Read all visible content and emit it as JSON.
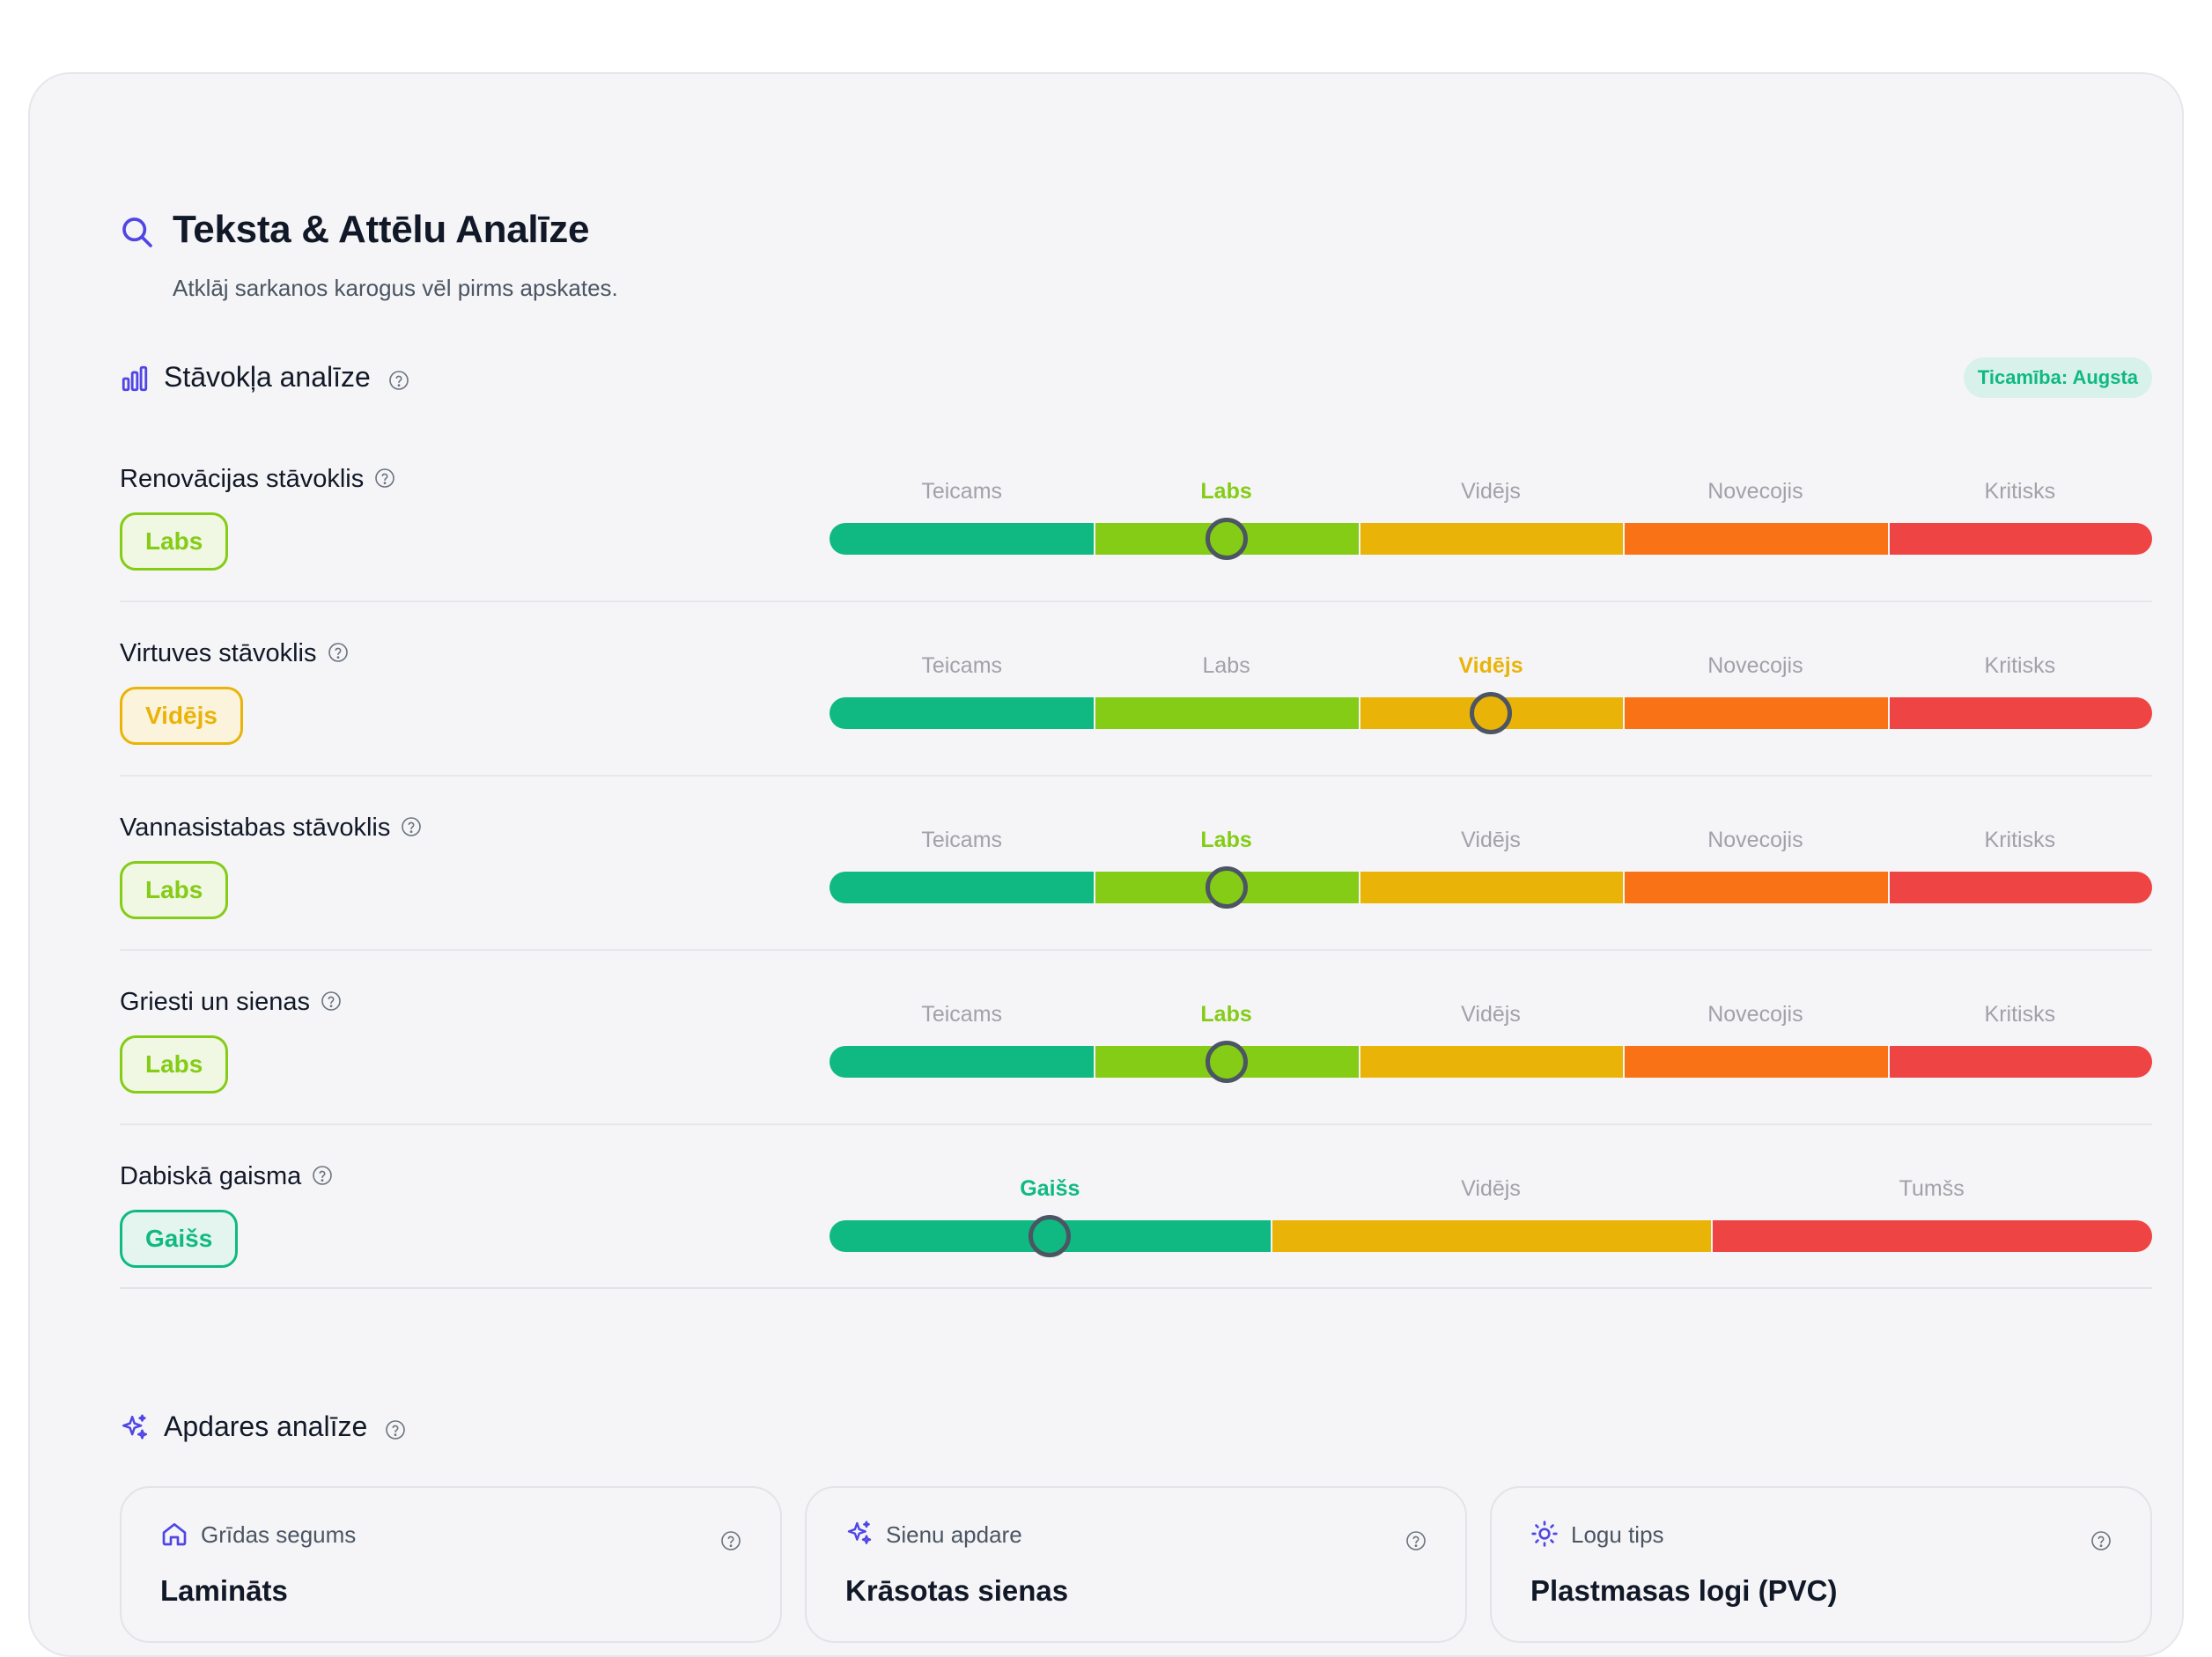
{
  "header": {
    "title": "Teksta & Attēlu Analīze",
    "subtitle": "Atklāj sarkanos karogus vēl pirms apskates.",
    "icon": "search-icon",
    "accent_color": "#4f46e5"
  },
  "condition_section": {
    "title": "Stāvokļa analīze",
    "icon": "bar-chart-icon",
    "confidence_label": "Ticamība: Augsta",
    "rows": [
      {
        "label": "Renovācijas stāvoklis",
        "value": "Labs",
        "scale": [
          "Teicams",
          "Labs",
          "Vidējs",
          "Novecojis",
          "Kritisks"
        ],
        "selected_index": 1,
        "position": 0.3
      },
      {
        "label": "Virtuves stāvoklis",
        "value": "Vidējs",
        "scale": [
          "Teicams",
          "Labs",
          "Vidējs",
          "Novecojis",
          "Kritisks"
        ],
        "selected_index": 2,
        "position": 0.5
      },
      {
        "label": "Vannasistabas stāvoklis",
        "value": "Labs",
        "scale": [
          "Teicams",
          "Labs",
          "Vidējs",
          "Novecojis",
          "Kritisks"
        ],
        "selected_index": 1,
        "position": 0.3
      },
      {
        "label": "Griesti un sienas",
        "value": "Labs",
        "scale": [
          "Teicams",
          "Labs",
          "Vidējs",
          "Novecojis",
          "Kritisks"
        ],
        "selected_index": 1,
        "position": 0.3
      },
      {
        "label": "Dabiskā gaisma",
        "value": "Gaišs",
        "scale": [
          "Gaišs",
          "Vidējs",
          "Tumšs"
        ],
        "selected_index": 0,
        "position": 0.1667
      }
    ],
    "colors5": [
      "#10b981",
      "#84cc16",
      "#eab308",
      "#f97316",
      "#ef4444"
    ],
    "colors3": [
      "#10b981",
      "#eab308",
      "#ef4444"
    ]
  },
  "finish_section": {
    "title": "Apdares analīze",
    "icon": "sparkles-icon",
    "cards": [
      {
        "label": "Grīdas segums",
        "value": "Lamināts",
        "icon": "home-icon"
      },
      {
        "label": "Sienu apdare",
        "value": "Krāsotas sienas",
        "icon": "sparkles-icon"
      },
      {
        "label": "Logu tips",
        "value": "Plastmasas logi (PVC)",
        "icon": "sun-icon"
      }
    ]
  }
}
